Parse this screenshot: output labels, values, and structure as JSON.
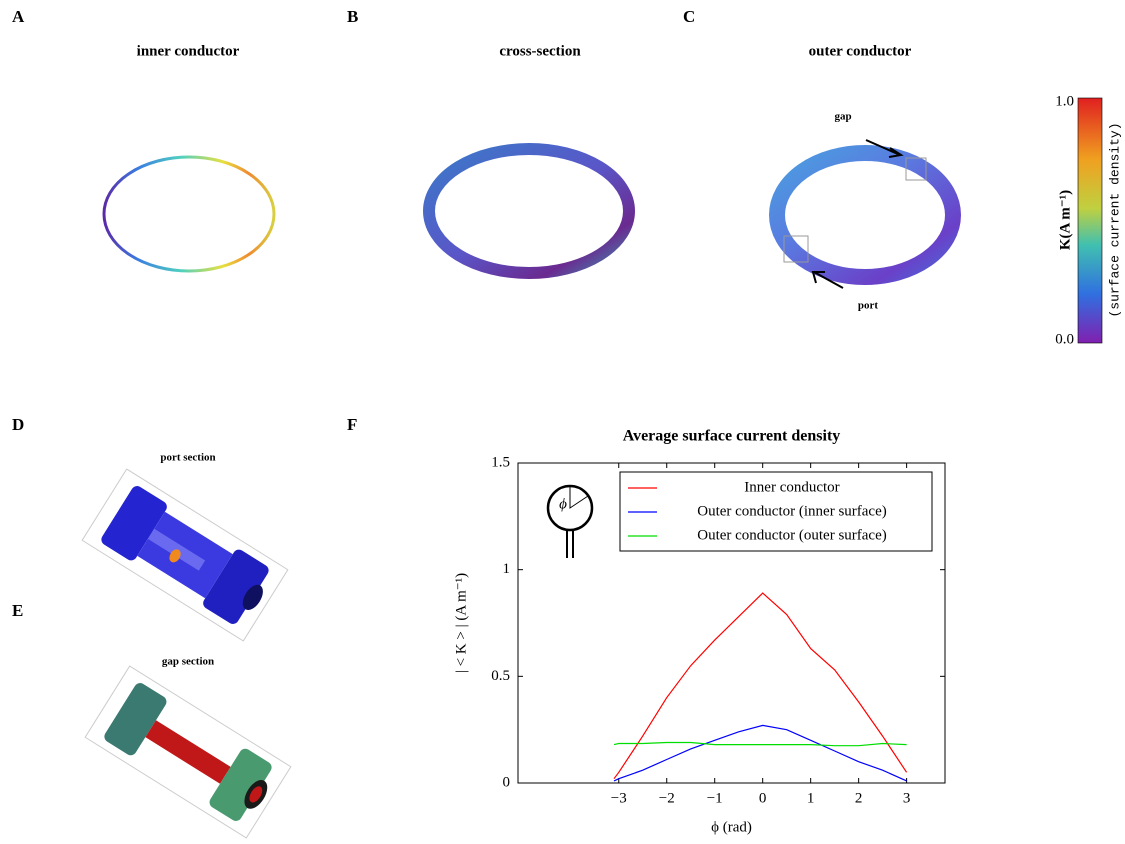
{
  "panels": [
    {
      "letter": "A",
      "title": "inner conductor"
    },
    {
      "letter": "B",
      "title": "cross-section"
    },
    {
      "letter": "C",
      "title": "outer conductor",
      "annotations": [
        "gap",
        "port"
      ]
    },
    {
      "letter": "D",
      "title": "port section"
    },
    {
      "letter": "E",
      "title": "gap section"
    },
    {
      "letter": "F"
    }
  ],
  "colorbar": {
    "label": "K(A m⁻¹)",
    "sublabel": "(surface current density)",
    "ticks": [
      {
        "value": 1,
        "label": "1.0"
      },
      {
        "value": 0,
        "label": "0.0"
      }
    ]
  },
  "chart_data": {
    "type": "line",
    "title": "Average surface current density",
    "x_label": "ϕ (rad)",
    "y_label": "| < K > | (A m⁻¹)",
    "inset_label": "ϕ",
    "x": [
      -3.1,
      -3,
      -2.5,
      -2,
      -1.5,
      -1,
      -0.5,
      0,
      0.5,
      1,
      1.5,
      2,
      2.5,
      3
    ],
    "series": [
      {
        "name": "Inner conductor",
        "color": "#ff0000",
        "values": [
          0.02,
          0.05,
          0.22,
          0.4,
          0.55,
          0.67,
          0.78,
          0.89,
          0.79,
          0.63,
          0.53,
          0.38,
          0.22,
          0.05
        ]
      },
      {
        "name": "Outer conductor (inner surface)",
        "color": "#0000ff",
        "values": [
          0.01,
          0.02,
          0.06,
          0.11,
          0.16,
          0.2,
          0.24,
          0.27,
          0.25,
          0.2,
          0.15,
          0.1,
          0.06,
          0.01
        ]
      },
      {
        "name": "Outer conductor (outer surface)",
        "color": "#00dd00",
        "values": [
          0.18,
          0.185,
          0.185,
          0.19,
          0.19,
          0.18,
          0.18,
          0.18,
          0.18,
          0.18,
          0.175,
          0.175,
          0.185,
          0.18
        ]
      }
    ],
    "xlim": [
      -5.1,
      3.8
    ],
    "ylim": [
      0,
      1.5
    ],
    "xticks": [
      -3,
      -2,
      -1,
      0,
      1,
      2,
      3
    ],
    "yticks": [
      0,
      0.5,
      1,
      1.5
    ],
    "legend": "upper right"
  }
}
